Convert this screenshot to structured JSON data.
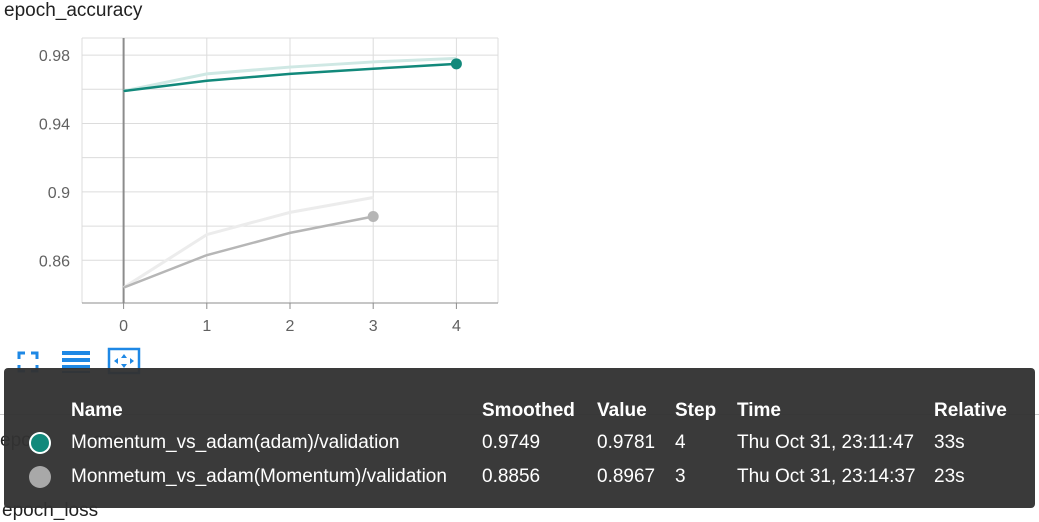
{
  "card": {
    "title": "epoch_accuracy"
  },
  "colors": {
    "teal": "#12897b",
    "teal_light": "#cfe8e4",
    "gray": "#b6b6b6",
    "gray_light": "#ececec",
    "grid": "#dcdcdc",
    "axis": "#8c8c8c"
  },
  "chart_data": {
    "type": "line",
    "title": "epoch_accuracy",
    "xlabel": "",
    "ylabel": "",
    "xlim": [
      -0.5,
      4.5
    ],
    "ylim": [
      0.835,
      0.99
    ],
    "x_ticks": [
      "0",
      "1",
      "2",
      "3",
      "4"
    ],
    "y_ticks": [
      "0.98",
      "0.94",
      "0.9",
      "0.86"
    ],
    "grid": true,
    "series": [
      {
        "name": "Momentum_vs_adam(adam)/validation",
        "color": "#12897b",
        "x": [
          0,
          1,
          2,
          3,
          4
        ],
        "smoothed": [
          0.959,
          0.965,
          0.969,
          0.972,
          0.9749
        ],
        "raw": [
          0.959,
          0.969,
          0.973,
          0.976,
          0.9781
        ]
      },
      {
        "name": "Monmetum_vs_adam(Momentum)/validation",
        "color": "#b6b6b6",
        "x": [
          0,
          1,
          2,
          3
        ],
        "smoothed": [
          0.844,
          0.863,
          0.876,
          0.8856
        ],
        "raw": [
          0.844,
          0.875,
          0.888,
          0.8967
        ]
      }
    ]
  },
  "toolbar": {
    "icons": [
      "fullscreen-icon",
      "list-icon",
      "fit-domain-icon"
    ]
  },
  "background": {
    "next_card_title_fragment": "epo",
    "next_card_title_fragment2": "oss",
    "next_card_bottom": "epoch_loss"
  },
  "tooltip": {
    "headers": {
      "name": "Name",
      "smoothed": "Smoothed",
      "value": "Value",
      "step": "Step",
      "time": "Time",
      "relative": "Relative"
    },
    "rows": [
      {
        "name": "Momentum_vs_adam(adam)/validation",
        "smoothed": "0.9749",
        "value": "0.9781",
        "step": "4",
        "time": "Thu Oct 31, 23:11:47",
        "relative": "33s",
        "color": "#12897b"
      },
      {
        "name": "Monmetum_vs_adam(Momentum)/validation",
        "smoothed": "0.8856",
        "value": "0.8967",
        "step": "3",
        "time": "Thu Oct 31, 23:14:37",
        "relative": "23s",
        "color": "#a8a8a8"
      }
    ]
  }
}
